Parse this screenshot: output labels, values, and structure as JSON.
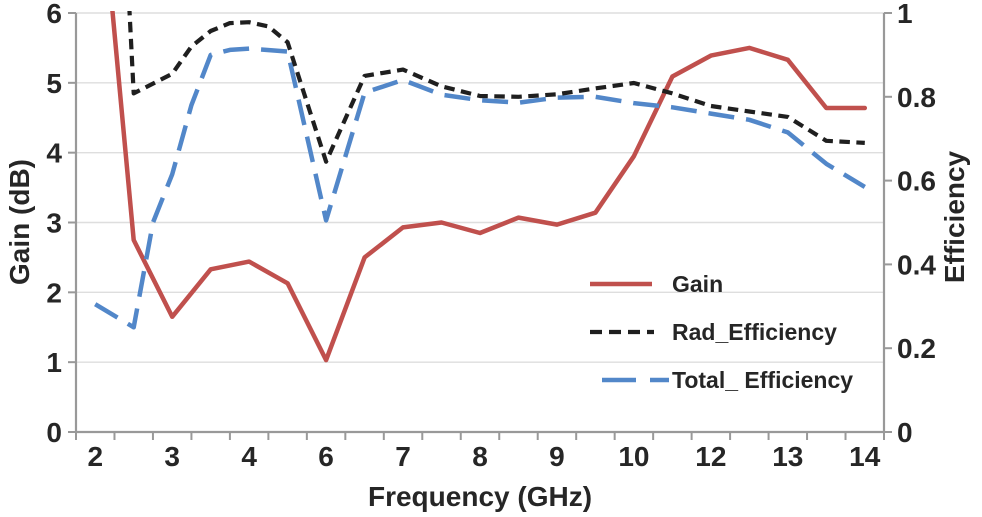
{
  "chart_data": {
    "type": "line",
    "title": "",
    "xlabel": "Frequency (GHz)",
    "ylabel_left": "Gain (dB)",
    "ylabel_right": "Efficiency",
    "x_tick_labels": [
      "2",
      "3",
      "4",
      "6",
      "7",
      "8",
      "9",
      "10",
      "12",
      "13",
      "14"
    ],
    "x_axis_note": "category axis: 21 half-step categories, ticks at 22 boundaries, labels centered under every second category",
    "y_left_ticks": [
      "0",
      "1",
      "2",
      "3",
      "4",
      "5",
      "6"
    ],
    "y_right_ticks": [
      "0",
      "0.2",
      "0.4",
      "0.6",
      "0.8",
      "1"
    ],
    "y_left_range": [
      0,
      6
    ],
    "y_right_range": [
      0,
      1
    ],
    "grid": "horizontal gridlines at left-axis integers 1-6",
    "legend_position": "inside plot, right-center, no border",
    "series": [
      {
        "name": "Gain",
        "axis": "left",
        "color": "#c0504d",
        "style": "solid",
        "points": [
          [
            0.3,
            6.9
          ],
          [
            1,
            2.75
          ],
          [
            2,
            1.65
          ],
          [
            3,
            2.33
          ],
          [
            4,
            2.44
          ],
          [
            5,
            2.13
          ],
          [
            6,
            1.03
          ],
          [
            7,
            2.5
          ],
          [
            8,
            2.93
          ],
          [
            9,
            3.0
          ],
          [
            10,
            2.85
          ],
          [
            11,
            3.07
          ],
          [
            12,
            2.97
          ],
          [
            13,
            3.14
          ],
          [
            14,
            3.95
          ],
          [
            15,
            5.09
          ],
          [
            16,
            5.39
          ],
          [
            17,
            5.5
          ],
          [
            18,
            5.33
          ],
          [
            19,
            4.64
          ],
          [
            20,
            4.64
          ]
        ]
      },
      {
        "name": "Rad_Efficiency",
        "axis": "right",
        "color": "#1f1f1f",
        "style": "short-dash",
        "points": [
          [
            0.86,
            1.06
          ],
          [
            1,
            0.808
          ],
          [
            2,
            0.855
          ],
          [
            2.5,
            0.92
          ],
          [
            3,
            0.957
          ],
          [
            3.5,
            0.976
          ],
          [
            4,
            0.978
          ],
          [
            4.5,
            0.968
          ],
          [
            5,
            0.93
          ],
          [
            6,
            0.645
          ],
          [
            7,
            0.85
          ],
          [
            8,
            0.865
          ],
          [
            9,
            0.825
          ],
          [
            10,
            0.802
          ],
          [
            11,
            0.8
          ],
          [
            12,
            0.806
          ],
          [
            13,
            0.82
          ],
          [
            14,
            0.833
          ],
          [
            15,
            0.808
          ],
          [
            16,
            0.778
          ],
          [
            17,
            0.765
          ],
          [
            18,
            0.752
          ],
          [
            19,
            0.695
          ],
          [
            20,
            0.69
          ]
        ]
      },
      {
        "name": "Total_ Efficiency",
        "axis": "right",
        "color": "#5287c9",
        "style": "long-dash",
        "points": [
          [
            0,
            0.305
          ],
          [
            1,
            0.25
          ],
          [
            1.5,
            0.5
          ],
          [
            2,
            0.615
          ],
          [
            2.5,
            0.78
          ],
          [
            3,
            0.9
          ],
          [
            3.5,
            0.912
          ],
          [
            4,
            0.915
          ],
          [
            5,
            0.908
          ],
          [
            6,
            0.505
          ],
          [
            7,
            0.81
          ],
          [
            8,
            0.84
          ],
          [
            9,
            0.805
          ],
          [
            10,
            0.792
          ],
          [
            11,
            0.786
          ],
          [
            12,
            0.798
          ],
          [
            13,
            0.8
          ],
          [
            14,
            0.785
          ],
          [
            15,
            0.775
          ],
          [
            16,
            0.76
          ],
          [
            17,
            0.745
          ],
          [
            18,
            0.715
          ],
          [
            19,
            0.64
          ],
          [
            20,
            0.585
          ]
        ]
      }
    ],
    "style": {
      "axis_color": "#999999",
      "grid_color": "#dedede",
      "text_color": "#262626",
      "background": "#ffffff"
    }
  }
}
